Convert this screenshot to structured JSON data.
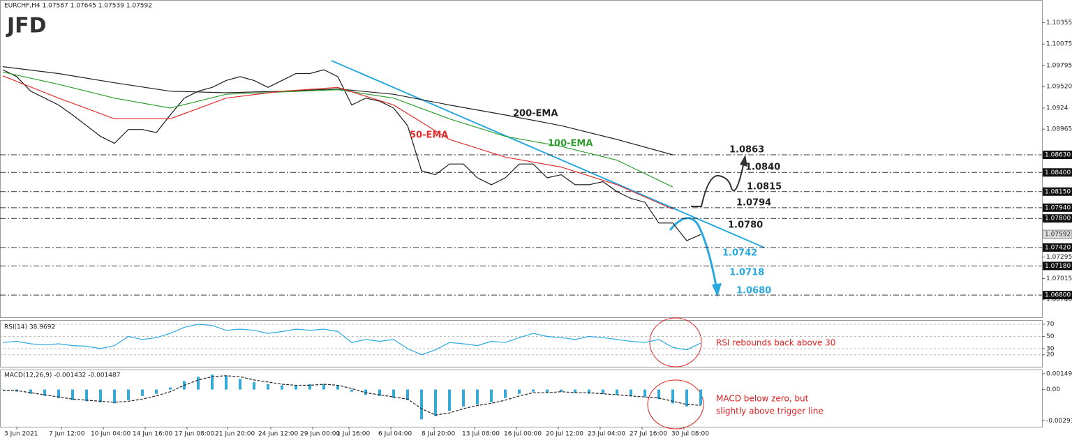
{
  "logo": "JFD",
  "chart_data": [
    {
      "type": "line",
      "title": "EURCHF,H4 1.07587 1.07645 1.07539 1.07592",
      "xlim": [
        -1,
        372.25
      ],
      "ylim": [
        1.0651,
        1.1065
      ],
      "xticks": [
        {
          "value": 5,
          "label": "3 Jun 2021"
        },
        {
          "value": 21,
          "label": "7 Jun 12:00"
        },
        {
          "value": 36,
          "label": "10 Jun 04:00"
        },
        {
          "value": 51,
          "label": "14 Jun 16:00"
        },
        {
          "value": 66,
          "label": "17 Jun 08:00"
        },
        {
          "value": 80.5,
          "label": "21 Jun 20:00"
        },
        {
          "value": 96,
          "label": "24 Jun 12:00"
        },
        {
          "value": 111,
          "label": "29 Jun 00:00"
        },
        {
          "value": 124,
          "label": "1 Jul 16:00"
        },
        {
          "value": 139,
          "label": "6 Jul 04:00"
        },
        {
          "value": 154.5,
          "label": "8 Jul 20:00"
        },
        {
          "value": 169,
          "label": "13 Jul 08:00"
        },
        {
          "value": 184,
          "label": "16 Jul 00:00"
        },
        {
          "value": 199,
          "label": "20 Jul 12:00"
        },
        {
          "value": 214,
          "label": "23 Jul 04:00"
        },
        {
          "value": 229,
          "label": "27 Jul 16:00"
        },
        {
          "value": 244,
          "label": "30 Jul 08:00"
        }
      ],
      "yticks": [
        1.10355,
        1.10075,
        1.09795,
        {
          "value": 1.0952,
          "label": "1.09520"
        },
        1.0924,
        1.08965,
        1.07295,
        1.07015,
        {
          "value": 1.0674,
          "label": "1.06740"
        }
      ],
      "last_price": 1.07592,
      "levels": [
        {
          "value": 1.0863,
          "label": "1.0863",
          "axis_label": "1.08630",
          "color": "#222222"
        },
        {
          "value": 1.084,
          "label": "1.0840",
          "axis_label": "1.08400",
          "color": "#222222"
        },
        {
          "value": 1.0815,
          "label": "1.0815",
          "axis_label": "1.08150",
          "color": "#222222"
        },
        {
          "value": 1.0794,
          "label": "1.0794",
          "axis_label": "1.07940",
          "color": "#222222"
        },
        {
          "value": 1.078,
          "label": "1.0780",
          "axis_label": "1.07800",
          "color": "#222222"
        },
        {
          "value": 1.0742,
          "label": "1.0742",
          "axis_label": "1.07420",
          "color": "#29a9e0"
        },
        {
          "value": 1.0718,
          "label": "1.0718",
          "axis_label": "1.07180",
          "color": "#29a9e0"
        },
        {
          "value": 1.068,
          "label": "1.0680",
          "axis_label": "1.06800",
          "color": "#29a9e0"
        }
      ],
      "series": [
        {
          "color": "#1a1a1a",
          "x": [
            0,
            5,
            10,
            15,
            20,
            25,
            30,
            35,
            40,
            45,
            50,
            55,
            60,
            65,
            70,
            75,
            80,
            85,
            90,
            95,
            100,
            105,
            110,
            115,
            120,
            125,
            130,
            135,
            140,
            145,
            150,
            155,
            160,
            165,
            170,
            175,
            180,
            185,
            190,
            195,
            200,
            205,
            210,
            215,
            220,
            225,
            230,
            235,
            240,
            245,
            250
          ],
          "values": [
            1.0974,
            1.0965,
            1.0946,
            1.0937,
            1.0928,
            1.0915,
            1.0901,
            1.0887,
            1.0878,
            1.0896,
            1.0896,
            1.0892,
            1.0915,
            1.0937,
            1.0946,
            1.0951,
            1.096,
            1.0965,
            1.096,
            1.0951,
            1.096,
            1.0969,
            1.0969,
            1.0974,
            1.0965,
            1.0928,
            1.0937,
            1.0933,
            1.0924,
            1.0901,
            1.0842,
            1.0837,
            1.0851,
            1.0851,
            1.0833,
            1.0824,
            1.0833,
            1.0851,
            1.0851,
            1.0833,
            1.0837,
            1.0824,
            1.0824,
            1.0828,
            1.0815,
            1.0806,
            1.0801,
            1.0774,
            1.0774,
            1.0751,
            1.0759
          ]
        },
        {
          "name": "200-EMA",
          "color": "#222222",
          "x": [
            0,
            20,
            40,
            60,
            80,
            100,
            120,
            140,
            160,
            180,
            200,
            220,
            240
          ],
          "values": [
            1.0978,
            1.0969,
            1.0957,
            1.0946,
            1.0944,
            1.0946,
            1.0949,
            1.0942,
            1.0928,
            1.0915,
            1.0901,
            1.0883,
            1.0863
          ]
        },
        {
          "name": "100-EMA",
          "color": "#2e9e2e",
          "x": [
            0,
            20,
            40,
            60,
            80,
            100,
            120,
            140,
            160,
            180,
            200,
            220,
            240
          ],
          "values": [
            1.0971,
            1.0955,
            1.0937,
            1.0924,
            1.0942,
            1.0945,
            1.0948,
            1.0937,
            1.091,
            1.0887,
            1.0874,
            1.0856,
            1.0821
          ]
        },
        {
          "name": "50-EMA",
          "color": "#e03030",
          "x": [
            0,
            20,
            40,
            60,
            80,
            100,
            120,
            140,
            160,
            180,
            200,
            220,
            240
          ],
          "values": [
            1.0966,
            1.0937,
            1.091,
            1.091,
            1.0937,
            1.0946,
            1.0951,
            1.0928,
            1.0883,
            1.086,
            1.0847,
            1.0824,
            1.0792
          ]
        }
      ]
    },
    {
      "type": "line",
      "title": "RSI(14) 38.9692",
      "ylim": [
        -0.86,
        75.71
      ],
      "yticks": [
        70,
        50,
        30,
        20
      ],
      "annotations": [
        {
          "text": "RSI rebounds back above 30",
          "color": "#e02020"
        }
      ],
      "series": [
        {
          "color": "#29a9e0",
          "x": [
            0,
            5,
            10,
            15,
            20,
            25,
            30,
            35,
            40,
            45,
            50,
            55,
            60,
            65,
            70,
            75,
            80,
            85,
            90,
            95,
            100,
            105,
            110,
            115,
            120,
            125,
            130,
            135,
            140,
            145,
            150,
            155,
            160,
            165,
            170,
            175,
            180,
            185,
            190,
            195,
            200,
            205,
            210,
            215,
            220,
            225,
            230,
            235,
            240,
            245,
            250
          ],
          "values": [
            40,
            42,
            38,
            36,
            38,
            35,
            34,
            30,
            35,
            50,
            45,
            48,
            55,
            65,
            70,
            68,
            60,
            62,
            60,
            55,
            58,
            62,
            60,
            62,
            58,
            40,
            45,
            42,
            45,
            30,
            20,
            28,
            40,
            38,
            35,
            42,
            40,
            48,
            55,
            50,
            48,
            45,
            50,
            48,
            45,
            42,
            40,
            45,
            32,
            28,
            38.9692
          ]
        }
      ]
    },
    {
      "type": "bar",
      "title": "MACD(12,26,9) -0.001432 -0.001487",
      "ylim": [
        -0.0035,
        0.00181
      ],
      "yticks": [
        0.00149,
        {
          "value": 0,
          "label": "0.00"
        },
        -0.002935
      ],
      "annotations": [
        {
          "text": "MACD below zero, but",
          "color": "#e02020"
        },
        {
          "text": "slightly above trigger line",
          "color": "#e02020"
        }
      ],
      "series": [
        {
          "color": "#36a9d6",
          "x": [
            0,
            5,
            10,
            15,
            20,
            25,
            30,
            35,
            40,
            45,
            50,
            55,
            60,
            65,
            70,
            75,
            80,
            85,
            90,
            95,
            100,
            105,
            110,
            115,
            120,
            125,
            130,
            135,
            140,
            145,
            150,
            155,
            160,
            165,
            170,
            175,
            180,
            185,
            190,
            195,
            200,
            205,
            210,
            215,
            220,
            225,
            230,
            235,
            240,
            245,
            250
          ],
          "values": [
            0,
            -0.0002,
            -0.0004,
            -0.0006,
            -0.0008,
            -0.001,
            -0.0011,
            -0.0012,
            -0.0013,
            -0.001,
            -0.0006,
            -0.0004,
            0.0002,
            0.0008,
            0.0012,
            0.0014,
            0.0013,
            0.001,
            0.0007,
            0.0005,
            0.0004,
            0.0004,
            0.0005,
            0.0005,
            0.0004,
            -0.0002,
            -0.0005,
            -0.0006,
            -0.0008,
            -0.001,
            -0.0028,
            -0.0025,
            -0.002,
            -0.0016,
            -0.0014,
            -0.0012,
            -0.0008,
            -0.0004,
            -0.0002,
            -0.0003,
            -0.0002,
            -0.0003,
            -0.0004,
            -0.0004,
            -0.0005,
            -0.0006,
            -0.0007,
            -0.0009,
            -0.0013,
            -0.0016,
            -0.001432
          ]
        },
        {
          "color": "#222222",
          "style": "dashed",
          "x": [
            0,
            5,
            10,
            15,
            20,
            25,
            30,
            35,
            40,
            45,
            50,
            55,
            60,
            65,
            70,
            75,
            80,
            85,
            90,
            95,
            100,
            105,
            110,
            115,
            120,
            125,
            130,
            135,
            140,
            145,
            150,
            155,
            160,
            165,
            170,
            175,
            180,
            185,
            190,
            195,
            200,
            205,
            210,
            215,
            220,
            225,
            230,
            235,
            240,
            245,
            250
          ],
          "values": [
            -0.0001,
            -0.0001,
            -0.0003,
            -0.0005,
            -0.0007,
            -0.0009,
            -0.001,
            -0.0011,
            -0.0012,
            -0.0011,
            -0.0009,
            -0.0006,
            -0.0002,
            0.0004,
            0.0009,
            0.0012,
            0.0013,
            0.0012,
            0.0009,
            0.0007,
            0.0005,
            0.0004,
            0.0004,
            0.0005,
            0.0004,
            0.0001,
            -0.0003,
            -0.0005,
            -0.0007,
            -0.0009,
            -0.0018,
            -0.0024,
            -0.0022,
            -0.0018,
            -0.0015,
            -0.0013,
            -0.001,
            -0.0006,
            -0.0003,
            -0.0003,
            -0.0002,
            -0.0003,
            -0.0003,
            -0.0004,
            -0.0005,
            -0.0006,
            -0.0007,
            -0.0008,
            -0.0011,
            -0.0014,
            -0.001487
          ]
        }
      ]
    }
  ]
}
